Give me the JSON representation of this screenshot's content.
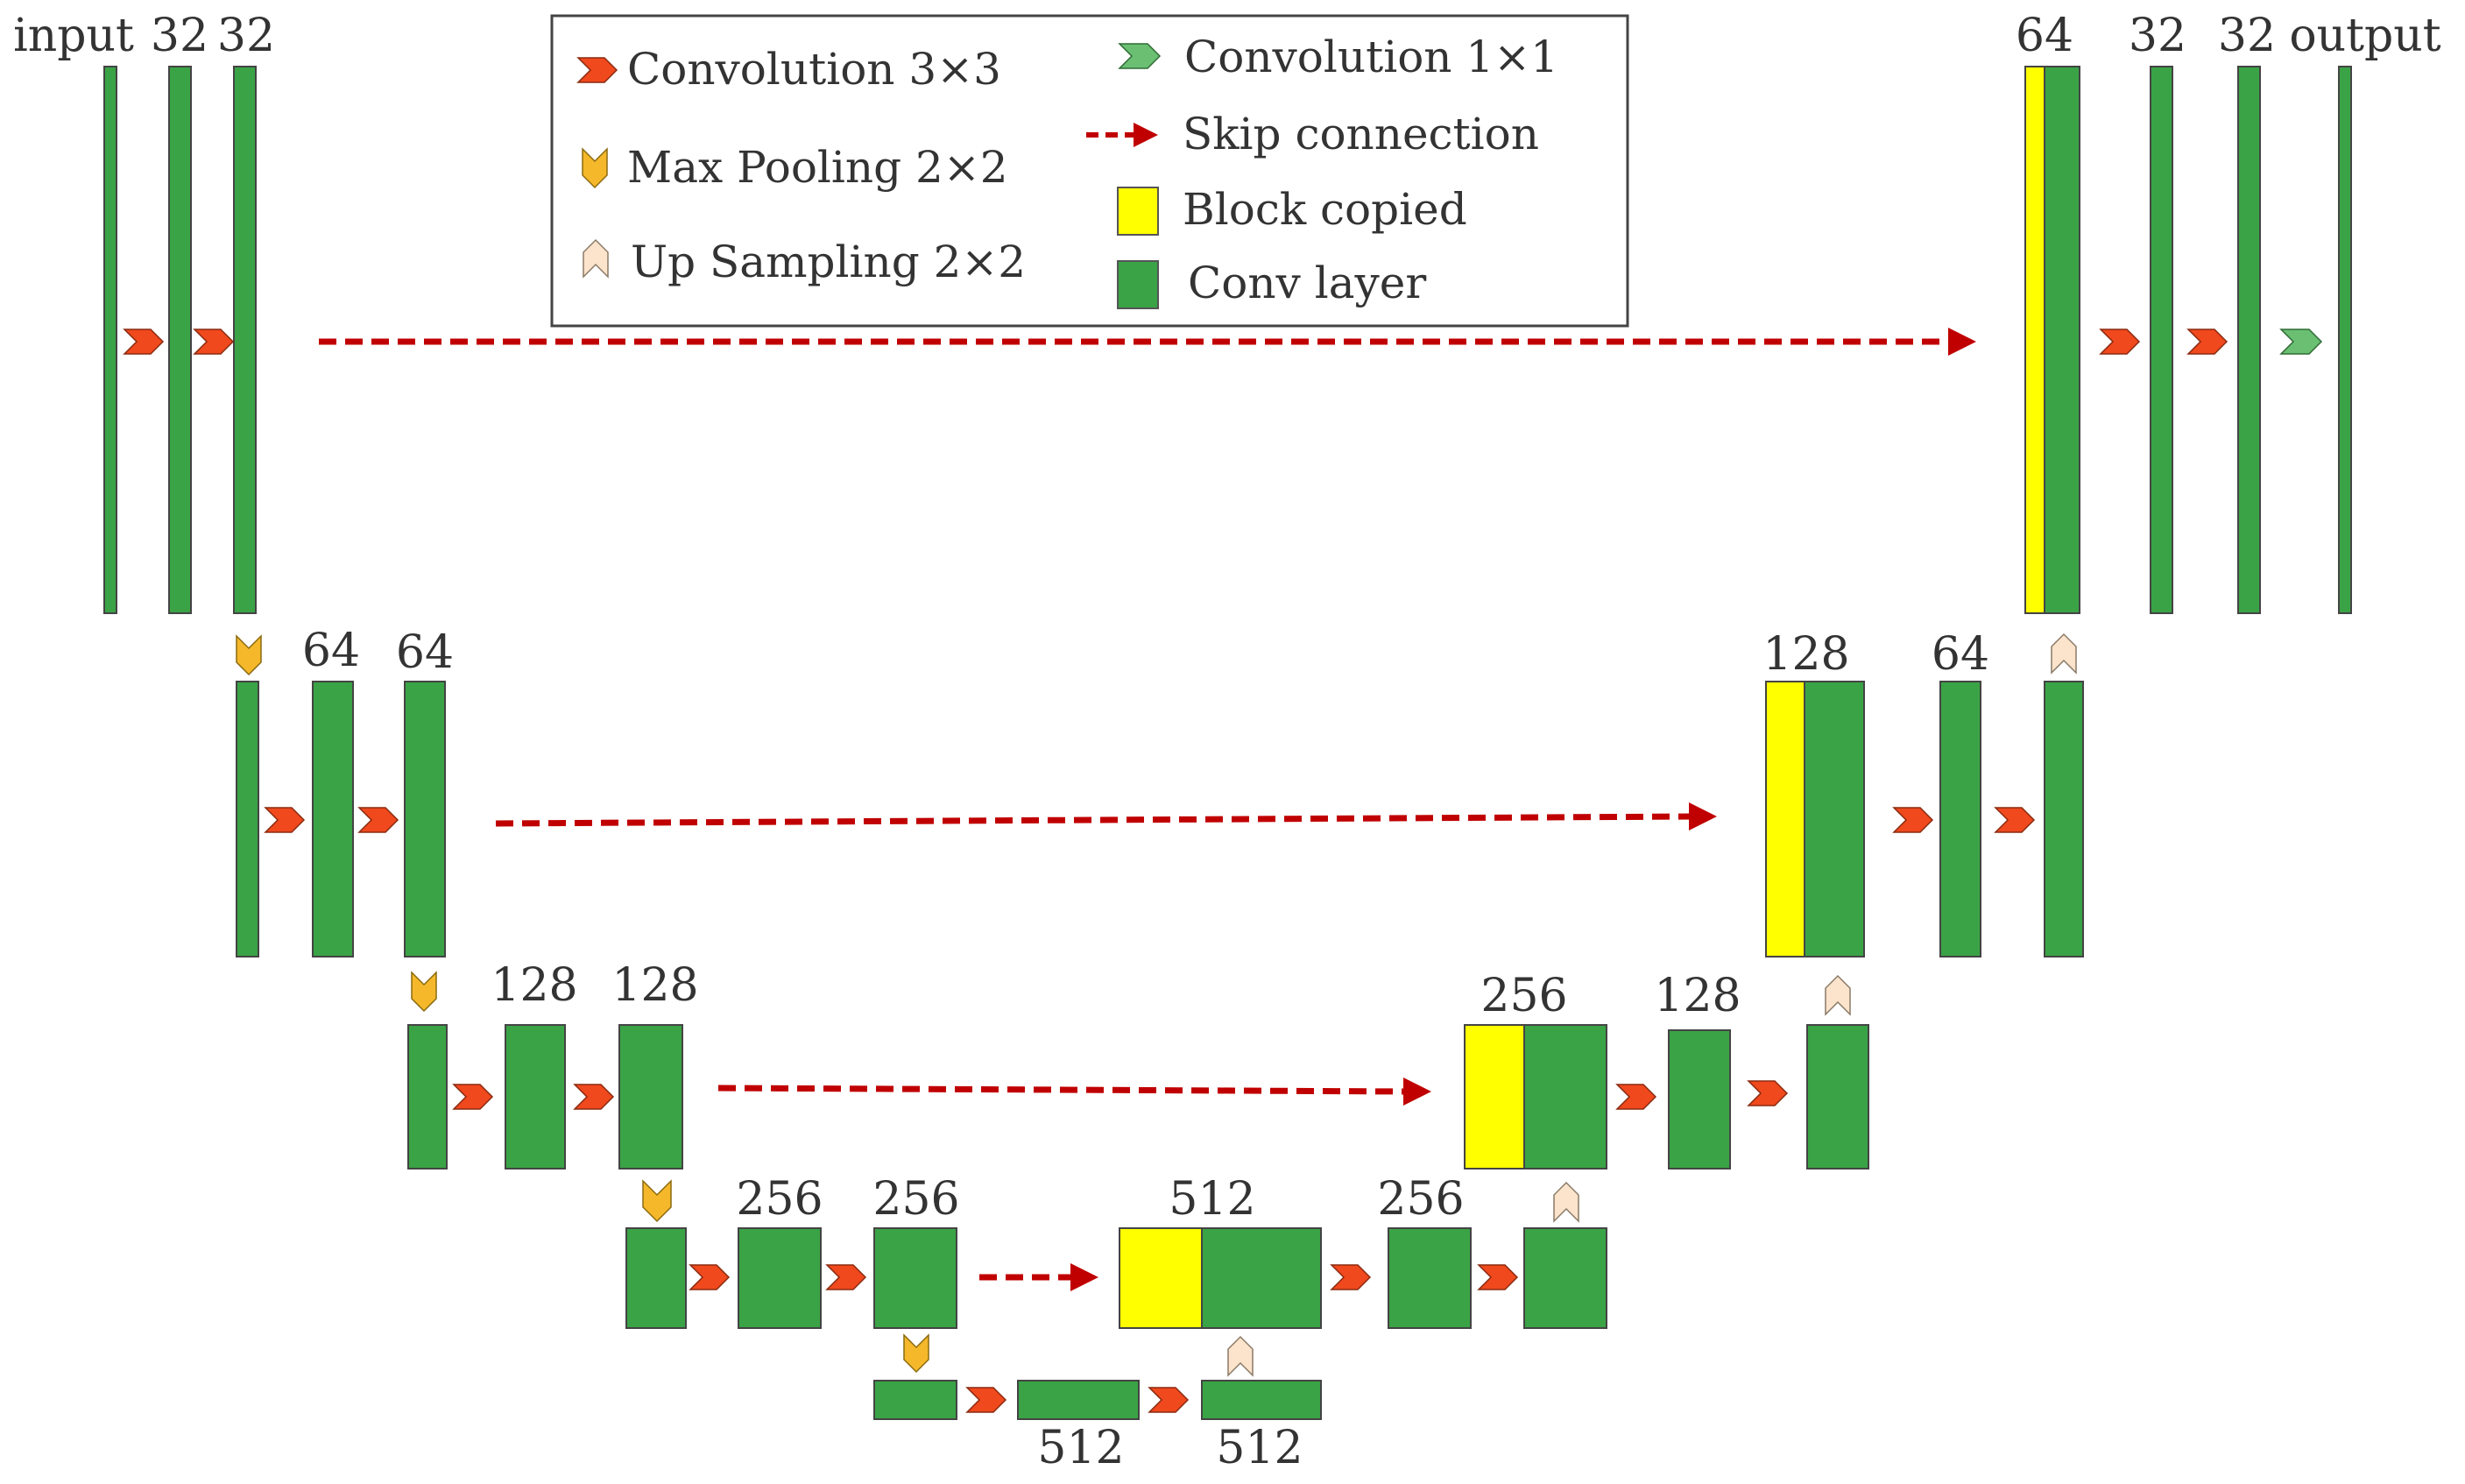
{
  "colors": {
    "conv_layer": "#3aa346",
    "block_copied": "#ffff00",
    "conv3x3_arrow": "#f0491d",
    "max_pool": "#f5b82a",
    "up_sampling": "#fbe3cc",
    "conv1x1": "#6bbf73",
    "skip": "#c00000",
    "text": "#333333"
  },
  "legend": {
    "items": [
      {
        "label": "Convolution 3×3",
        "icon": "conv3x3-arrow-icon"
      },
      {
        "label": "Max Pooling 2×2",
        "icon": "max-pool-icon"
      },
      {
        "label": "Up Sampling 2×2",
        "icon": "up-sampling-icon"
      },
      {
        "label": "Convolution 1×1",
        "icon": "conv1x1-arrow-icon"
      },
      {
        "label": "Skip connection",
        "icon": "skip-arrow-icon"
      },
      {
        "label": "Block copied",
        "icon": "block-copied-swatch"
      },
      {
        "label": "Conv layer",
        "icon": "conv-layer-swatch"
      }
    ]
  },
  "labels": {
    "input": "input",
    "output": "output",
    "enc1_a": "32",
    "enc1_b": "32",
    "enc2_a": "64",
    "enc2_b": "64",
    "enc3_a": "128",
    "enc3_b": "128",
    "enc4_a": "256",
    "enc4_b": "256",
    "bottleneck_a": "512",
    "bottleneck_b": "512",
    "dec4_concat": "512",
    "dec4_conv": "256",
    "dec3_concat": "256",
    "dec3_conv": "128",
    "dec2_concat": "128",
    "dec2_conv": "64",
    "dec1_concat": "64",
    "dec1_a": "32",
    "dec1_b": "32"
  }
}
